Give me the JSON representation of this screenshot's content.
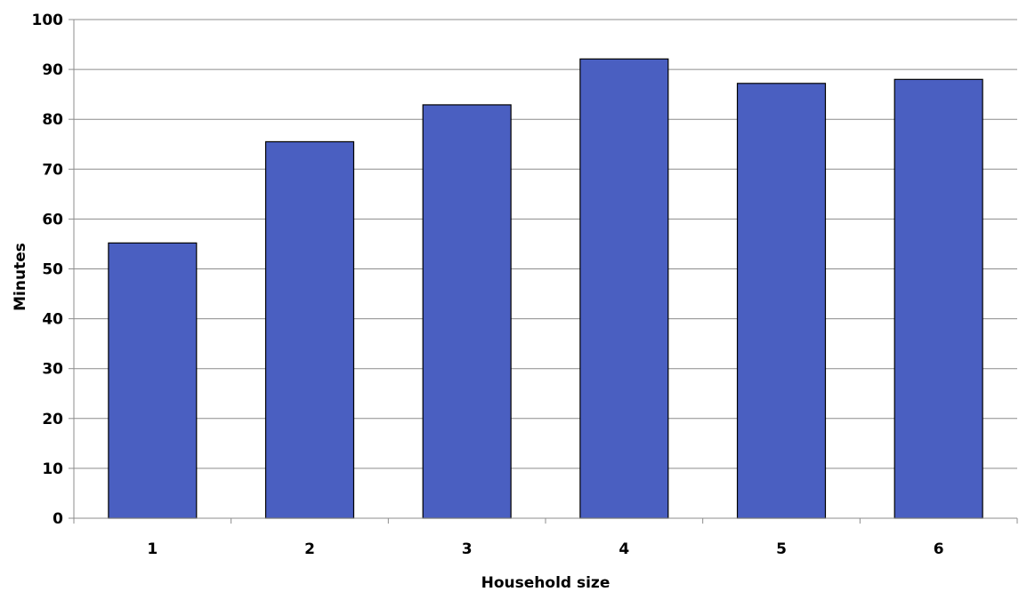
{
  "chart_data": {
    "type": "bar",
    "title": "",
    "xlabel": "Household size",
    "ylabel": "Minutes",
    "categories": [
      "1",
      "2",
      "3",
      "4",
      "5",
      "6"
    ],
    "values": [
      55.2,
      75.5,
      82.9,
      92.1,
      87.2,
      88.0
    ],
    "ylim": [
      0,
      100
    ],
    "yticks": [
      "0",
      "10",
      "20",
      "30",
      "40",
      "50",
      "60",
      "70",
      "80",
      "90",
      "100"
    ],
    "grid": true,
    "legend": "none",
    "colors": {
      "bar_fill": "#4a5fc1",
      "bar_stroke": "#000000",
      "grid": "#8c8c8c"
    }
  }
}
